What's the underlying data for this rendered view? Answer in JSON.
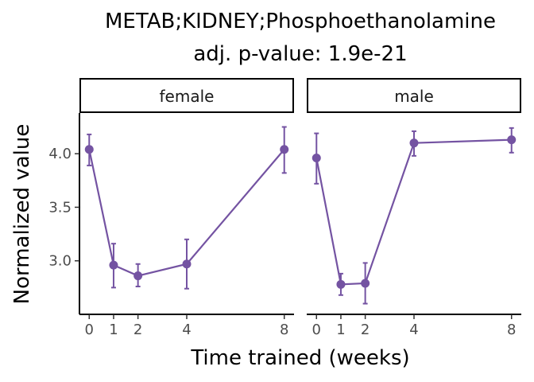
{
  "chart_data": {
    "type": "line",
    "title": "METAB;KIDNEY;Phosphoethanolamine",
    "subtitle": "adj. p-value: 1.9e-21",
    "xlabel": "Time trained (weeks)",
    "ylabel": "Normalized value",
    "x_ticks": [
      0,
      1,
      2,
      4,
      8
    ],
    "y_ticks": [
      3.0,
      3.5,
      4.0
    ],
    "y_tick_labels": [
      "3.0",
      "3.5",
      "4.0"
    ],
    "ylim": [
      2.5,
      4.38
    ],
    "xlim": [
      -0.4,
      8.4
    ],
    "grid": false,
    "color": "#7453a2",
    "panels": [
      {
        "label": "female",
        "points": [
          {
            "x": 0,
            "y": 4.04,
            "ymin": 3.89,
            "ymax": 4.18
          },
          {
            "x": 1,
            "y": 2.96,
            "ymin": 2.75,
            "ymax": 3.16
          },
          {
            "x": 2,
            "y": 2.86,
            "ymin": 2.76,
            "ymax": 2.97
          },
          {
            "x": 4,
            "y": 2.97,
            "ymin": 2.74,
            "ymax": 3.2
          },
          {
            "x": 8,
            "y": 4.04,
            "ymin": 3.82,
            "ymax": 4.25
          }
        ]
      },
      {
        "label": "male",
        "points": [
          {
            "x": 0,
            "y": 3.96,
            "ymin": 3.72,
            "ymax": 4.19
          },
          {
            "x": 1,
            "y": 2.78,
            "ymin": 2.68,
            "ymax": 2.88
          },
          {
            "x": 2,
            "y": 2.79,
            "ymin": 2.6,
            "ymax": 2.98
          },
          {
            "x": 4,
            "y": 4.1,
            "ymin": 3.98,
            "ymax": 4.21
          },
          {
            "x": 8,
            "y": 4.13,
            "ymin": 4.01,
            "ymax": 4.24
          }
        ]
      }
    ]
  }
}
